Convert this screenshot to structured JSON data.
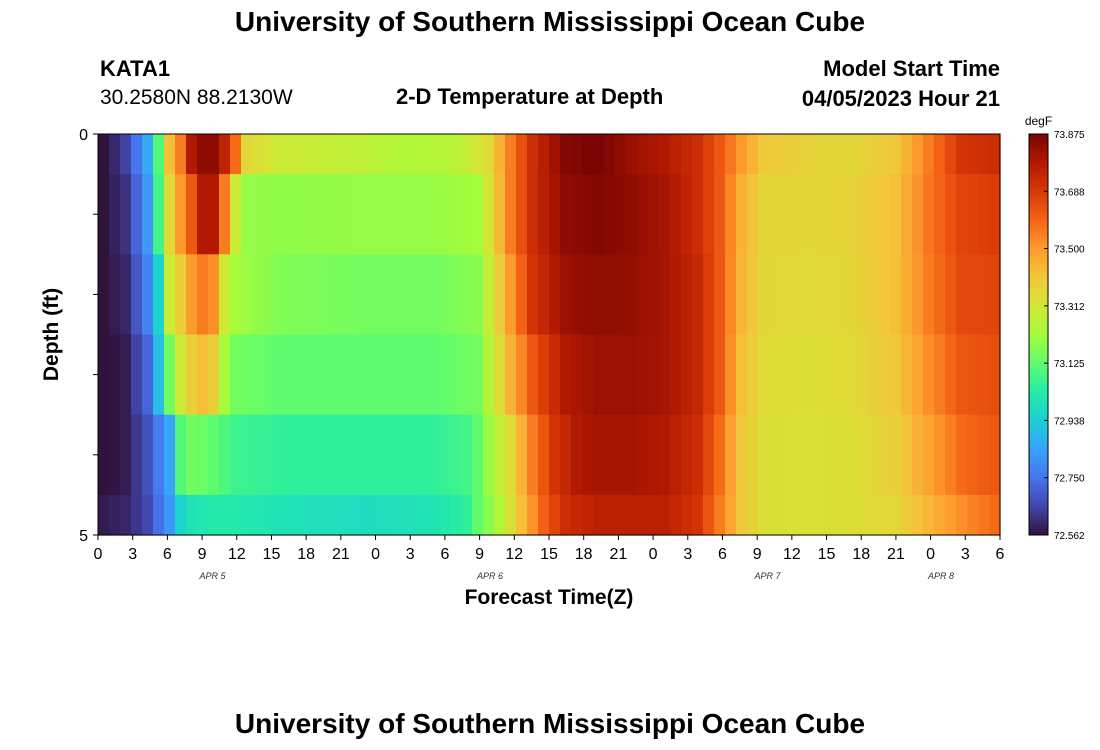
{
  "header": {
    "title": "University of Southern Mississippi Ocean Cube",
    "station": "KATA1",
    "coords": "30.2580N  88.2130W",
    "subtitle": "2-D Temperature at Depth",
    "model_label": "Model Start Time",
    "model_time": "04/05/2023 Hour 21",
    "footer_title": "University of Southern Mississippi Ocean Cube"
  },
  "colors": {
    "colormap": [
      "#30123b",
      "#4145ab",
      "#4675ed",
      "#39a2fc",
      "#1bcfd4",
      "#24eca6",
      "#61fc6c",
      "#a4fc3b",
      "#d1e834",
      "#f3c63a",
      "#fe9b2d",
      "#f36315",
      "#d93806",
      "#b11901",
      "#7a0403"
    ]
  },
  "chart_data": {
    "type": "heatmap",
    "title": "2-D Temperature at Depth",
    "xlabel": "Forecast Time(Z)",
    "ylabel": "Depth (ft)",
    "y_ticks": [
      "0",
      "5"
    ],
    "ylim": [
      0,
      5
    ],
    "depth_levels": 5,
    "x_tick_labels": [
      "0",
      "3",
      "6",
      "9",
      "12",
      "15",
      "18",
      "21",
      "0",
      "3",
      "6",
      "9",
      "12",
      "15",
      "18",
      "21",
      "0",
      "3",
      "6",
      "9",
      "12",
      "15",
      "18",
      "21",
      "0",
      "3",
      "6"
    ],
    "date_labels": [
      {
        "label": "APR 5",
        "after_tick": 3
      },
      {
        "label": "APR 6",
        "after_tick": 11
      },
      {
        "label": "APR 7",
        "after_tick": 19
      },
      {
        "label": "APR 8",
        "after_tick": 24
      }
    ],
    "colorbar": {
      "unit": "degF",
      "min": 72.562,
      "max": 73.875,
      "ticks": [
        "73.875",
        "73.688",
        "73.500",
        "73.312",
        "73.125",
        "72.938",
        "72.750",
        "72.562"
      ]
    },
    "row_keyframes": [
      [
        [
          0,
          72.56
        ],
        [
          2,
          72.65
        ],
        [
          4,
          72.86
        ],
        [
          5,
          73.1
        ],
        [
          6,
          73.42
        ],
        [
          7,
          73.55
        ],
        [
          8,
          73.78
        ],
        [
          9,
          73.84
        ],
        [
          10,
          73.84
        ],
        [
          11,
          73.75
        ],
        [
          12,
          73.58
        ],
        [
          13,
          73.36
        ],
        [
          16,
          73.3
        ],
        [
          24,
          73.27
        ],
        [
          28,
          73.24
        ],
        [
          32,
          73.26
        ],
        [
          35,
          73.35
        ],
        [
          37,
          73.55
        ],
        [
          39,
          73.72
        ],
        [
          42,
          73.86
        ],
        [
          45,
          73.88
        ],
        [
          48,
          73.82
        ],
        [
          51,
          73.78
        ],
        [
          54,
          73.72
        ],
        [
          56,
          73.62
        ],
        [
          58,
          73.5
        ],
        [
          60,
          73.4
        ],
        [
          64,
          73.37
        ],
        [
          68,
          73.36
        ],
        [
          72,
          73.4
        ],
        [
          75,
          73.55
        ],
        [
          78,
          73.7
        ],
        [
          81,
          73.72
        ]
      ],
      [
        [
          0,
          72.56
        ],
        [
          2,
          72.62
        ],
        [
          4,
          72.82
        ],
        [
          5,
          73.08
        ],
        [
          6,
          73.35
        ],
        [
          7,
          73.5
        ],
        [
          8,
          73.62
        ],
        [
          9,
          73.78
        ],
        [
          10,
          73.78
        ],
        [
          11,
          73.55
        ],
        [
          12,
          73.3
        ],
        [
          13,
          73.2
        ],
        [
          16,
          73.19
        ],
        [
          24,
          73.2
        ],
        [
          30,
          73.2
        ],
        [
          34,
          73.22
        ],
        [
          35,
          73.32
        ],
        [
          37,
          73.55
        ],
        [
          39,
          73.72
        ],
        [
          42,
          73.84
        ],
        [
          45,
          73.86
        ],
        [
          48,
          73.84
        ],
        [
          51,
          73.8
        ],
        [
          54,
          73.72
        ],
        [
          56,
          73.62
        ],
        [
          58,
          73.45
        ],
        [
          60,
          73.37
        ],
        [
          64,
          73.36
        ],
        [
          68,
          73.37
        ],
        [
          72,
          73.42
        ],
        [
          75,
          73.56
        ],
        [
          78,
          73.66
        ],
        [
          81,
          73.68
        ]
      ],
      [
        [
          0,
          72.56
        ],
        [
          2,
          72.6
        ],
        [
          4,
          72.78
        ],
        [
          5,
          72.95
        ],
        [
          6,
          73.3
        ],
        [
          7,
          73.38
        ],
        [
          8,
          73.5
        ],
        [
          9,
          73.55
        ],
        [
          10,
          73.52
        ],
        [
          11,
          73.3
        ],
        [
          12,
          73.22
        ],
        [
          16,
          73.17
        ],
        [
          24,
          73.15
        ],
        [
          30,
          73.15
        ],
        [
          34,
          73.18
        ],
        [
          35,
          73.28
        ],
        [
          37,
          73.5
        ],
        [
          39,
          73.7
        ],
        [
          42,
          73.82
        ],
        [
          45,
          73.84
        ],
        [
          48,
          73.83
        ],
        [
          51,
          73.8
        ],
        [
          54,
          73.74
        ],
        [
          56,
          73.62
        ],
        [
          58,
          73.44
        ],
        [
          60,
          73.36
        ],
        [
          64,
          73.35
        ],
        [
          68,
          73.36
        ],
        [
          72,
          73.42
        ],
        [
          75,
          73.55
        ],
        [
          78,
          73.65
        ],
        [
          81,
          73.66
        ]
      ],
      [
        [
          0,
          72.56
        ],
        [
          2,
          72.58
        ],
        [
          4,
          72.72
        ],
        [
          5,
          72.9
        ],
        [
          6,
          73.15
        ],
        [
          7,
          73.3
        ],
        [
          8,
          73.38
        ],
        [
          9,
          73.42
        ],
        [
          10,
          73.38
        ],
        [
          11,
          73.22
        ],
        [
          12,
          73.15
        ],
        [
          16,
          73.12
        ],
        [
          24,
          73.12
        ],
        [
          30,
          73.12
        ],
        [
          34,
          73.15
        ],
        [
          35,
          73.25
        ],
        [
          37,
          73.45
        ],
        [
          39,
          73.62
        ],
        [
          42,
          73.78
        ],
        [
          45,
          73.82
        ],
        [
          48,
          73.82
        ],
        [
          51,
          73.8
        ],
        [
          54,
          73.74
        ],
        [
          56,
          73.62
        ],
        [
          58,
          73.42
        ],
        [
          60,
          73.35
        ],
        [
          64,
          73.34
        ],
        [
          68,
          73.35
        ],
        [
          72,
          73.4
        ],
        [
          75,
          73.52
        ],
        [
          78,
          73.62
        ],
        [
          81,
          73.64
        ]
      ],
      [
        [
          0,
          72.56
        ],
        [
          2,
          72.58
        ],
        [
          4,
          72.68
        ],
        [
          6,
          72.85
        ],
        [
          7,
          73.1
        ],
        [
          8,
          73.15
        ],
        [
          10,
          73.12
        ],
        [
          12,
          73.07
        ],
        [
          16,
          73.05
        ],
        [
          24,
          73.05
        ],
        [
          30,
          73.05
        ],
        [
          33,
          73.08
        ],
        [
          34,
          73.12
        ],
        [
          35,
          73.2
        ],
        [
          37,
          73.35
        ],
        [
          39,
          73.55
        ],
        [
          41,
          73.7
        ],
        [
          43,
          73.78
        ],
        [
          45,
          73.8
        ],
        [
          48,
          73.8
        ],
        [
          51,
          73.78
        ],
        [
          54,
          73.72
        ],
        [
          56,
          73.58
        ],
        [
          58,
          73.4
        ],
        [
          60,
          73.34
        ],
        [
          64,
          73.33
        ],
        [
          68,
          73.34
        ],
        [
          72,
          73.38
        ],
        [
          75,
          73.48
        ],
        [
          78,
          73.58
        ],
        [
          81,
          73.62
        ]
      ],
      [
        [
          0,
          72.58
        ],
        [
          2,
          72.6
        ],
        [
          4,
          72.66
        ],
        [
          6,
          72.82
        ],
        [
          7,
          72.95
        ],
        [
          8,
          73.0
        ],
        [
          10,
          73.02
        ],
        [
          12,
          73.02
        ],
        [
          16,
          73.0
        ],
        [
          24,
          72.98
        ],
        [
          30,
          73.0
        ],
        [
          33,
          73.05
        ],
        [
          34,
          73.12
        ],
        [
          35,
          73.18
        ],
        [
          36,
          73.25
        ],
        [
          38,
          73.42
        ],
        [
          40,
          73.6
        ],
        [
          42,
          73.72
        ],
        [
          45,
          73.76
        ],
        [
          48,
          73.76
        ],
        [
          51,
          73.76
        ],
        [
          54,
          73.7
        ],
        [
          56,
          73.55
        ],
        [
          58,
          73.4
        ],
        [
          60,
          73.34
        ],
        [
          64,
          73.33
        ],
        [
          68,
          73.34
        ],
        [
          72,
          73.36
        ],
        [
          75,
          73.44
        ],
        [
          78,
          73.52
        ],
        [
          81,
          73.58
        ]
      ]
    ]
  }
}
